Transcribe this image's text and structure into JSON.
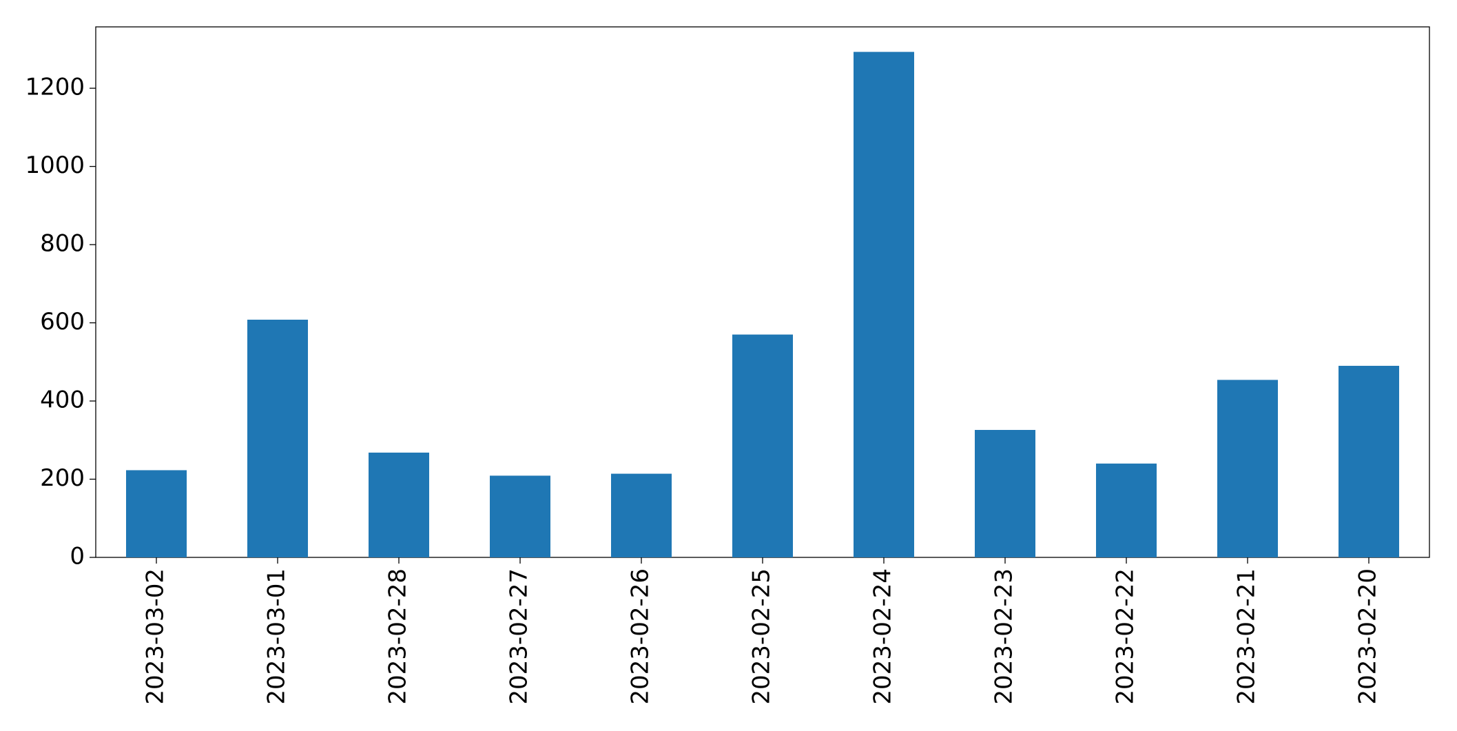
{
  "chart_data": {
    "type": "bar",
    "categories": [
      "2023-03-02",
      "2023-03-01",
      "2023-02-28",
      "2023-02-27",
      "2023-02-26",
      "2023-02-25",
      "2023-02-24",
      "2023-02-23",
      "2023-02-22",
      "2023-02-21",
      "2023-02-20"
    ],
    "values": [
      223,
      608,
      268,
      209,
      214,
      570,
      1293,
      326,
      240,
      454,
      490
    ],
    "color": "#1f77b4",
    "ylim": [
      0,
      1357
    ],
    "yticks": [
      0,
      200,
      400,
      600,
      800,
      1000,
      1200
    ],
    "grid": false
  }
}
